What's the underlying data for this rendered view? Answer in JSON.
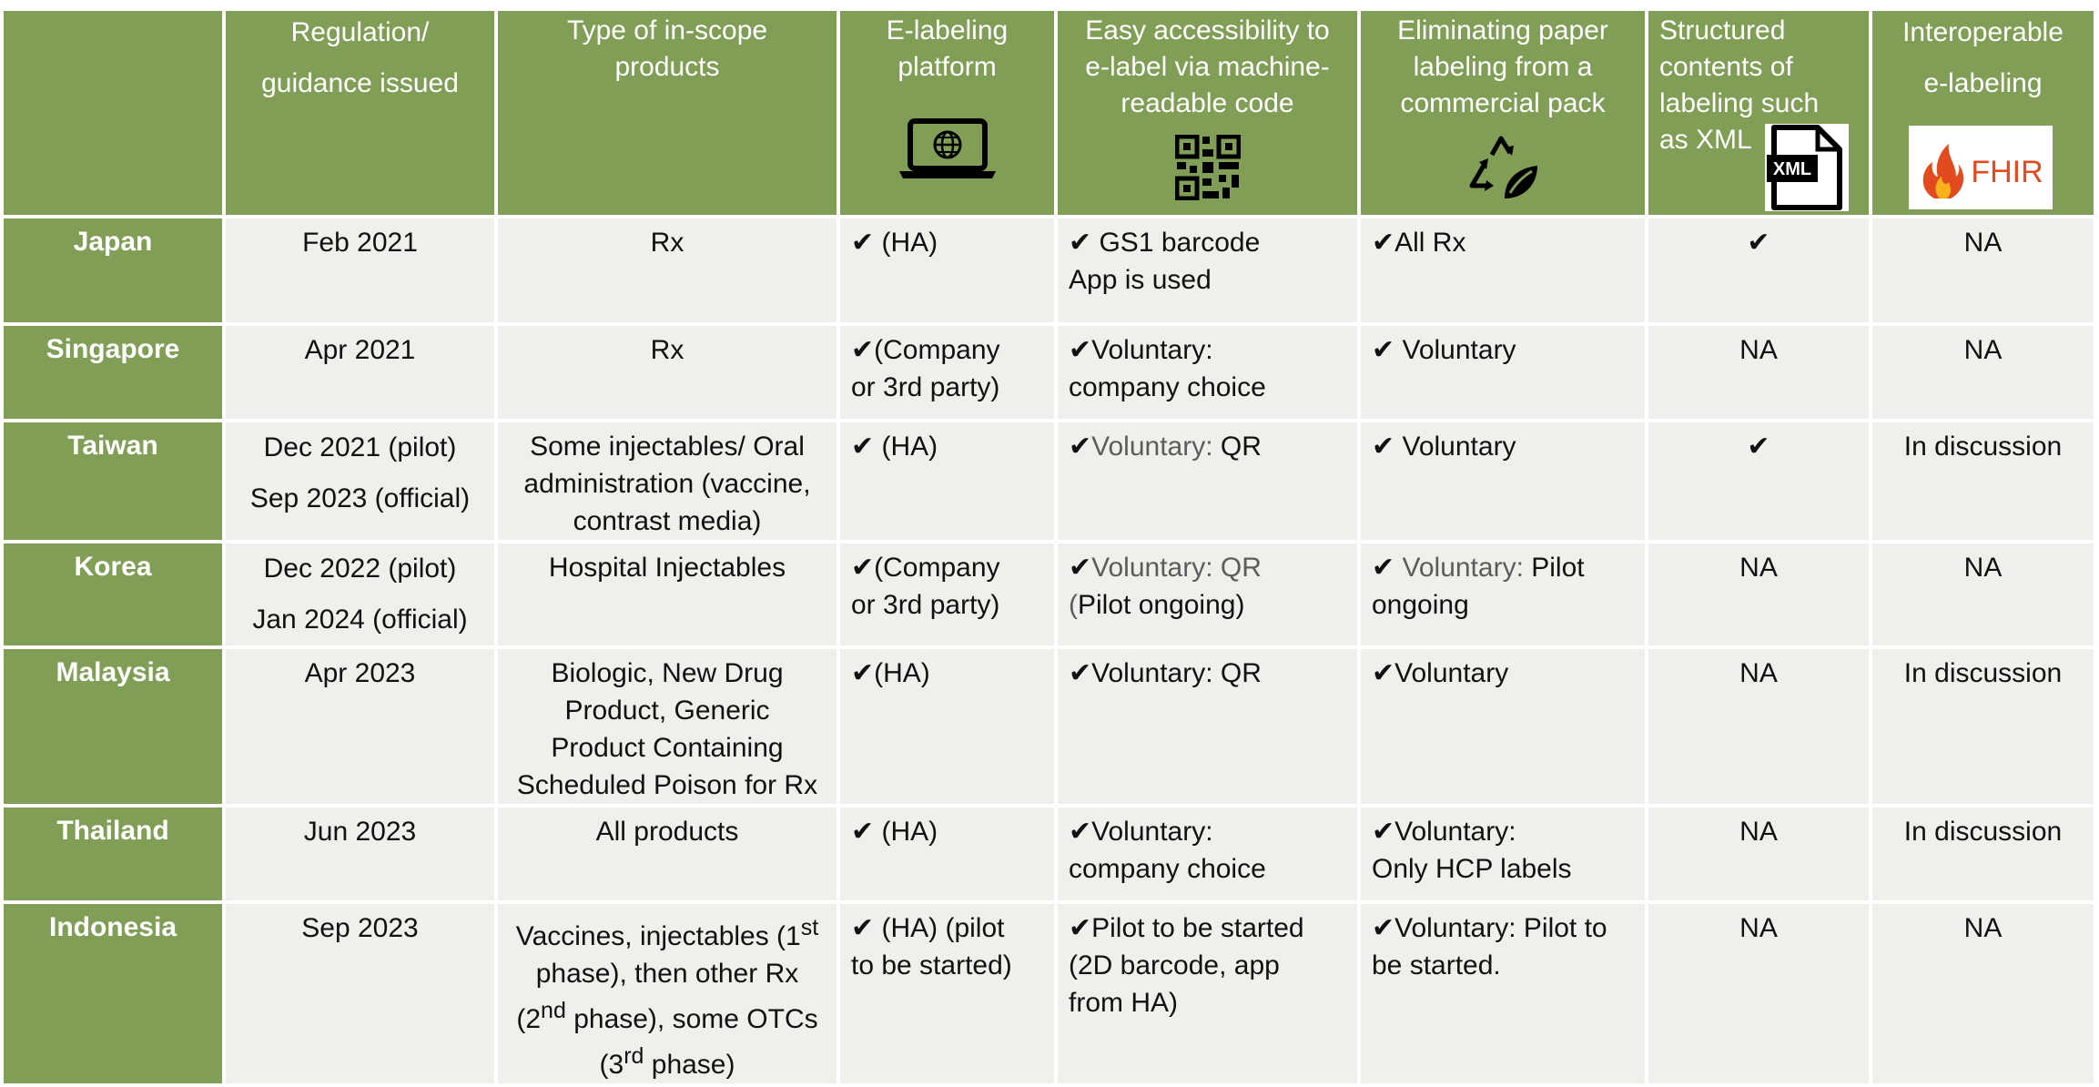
{
  "headers": [
    {
      "key": "country",
      "lines": []
    },
    {
      "key": "regulation",
      "lines": [
        "Regulation/",
        "guidance issued"
      ]
    },
    {
      "key": "products",
      "lines": [
        "Type of in-scope",
        "products"
      ]
    },
    {
      "key": "platform",
      "lines": [
        "E-labeling",
        "platform"
      ],
      "icon": "laptop-globe-icon"
    },
    {
      "key": "accessibility",
      "lines": [
        "Easy accessibility to",
        "e-label via machine-",
        "readable code"
      ],
      "icon": "qr-code-icon"
    },
    {
      "key": "paper",
      "lines": [
        "Eliminating paper",
        "labeling from a",
        "commercial pack"
      ],
      "icon": "recycle-leaf-icon"
    },
    {
      "key": "structured",
      "lines": [
        "Structured",
        "contents of",
        "labeling such",
        "as XML"
      ],
      "icon": "xml-file-icon"
    },
    {
      "key": "interop",
      "lines": [
        "Interoperable",
        "e-labeling"
      ],
      "icon": "fhir-logo-icon"
    }
  ],
  "xml_badge_text": "XML",
  "fhir_logo_text": "FHIR",
  "rows": [
    {
      "country": "Japan",
      "regulation": [
        "Feb 2021"
      ],
      "products": [
        "Rx"
      ],
      "platform": [
        "✔ (HA)"
      ],
      "accessibility": [
        "✔ GS1 barcode",
        "App is used"
      ],
      "paper": [
        "✔All Rx"
      ],
      "structured": [
        "✔"
      ],
      "interop": [
        "NA"
      ]
    },
    {
      "country": "Singapore",
      "regulation": [
        "Apr 2021"
      ],
      "products": [
        "Rx"
      ],
      "platform": [
        "✔(Company",
        "or 3rd party)"
      ],
      "accessibility": [
        "✔Voluntary:",
        "company choice"
      ],
      "paper": [
        "✔ Voluntary"
      ],
      "structured": [
        "NA"
      ],
      "interop": [
        "NA"
      ]
    },
    {
      "country": "Taiwan",
      "regulation": [
        "Dec 2021 (pilot)",
        "Sep 2023 (official)"
      ],
      "products": [
        "Some injectables/ Oral",
        "administration (vaccine,",
        "contrast media)"
      ],
      "platform": [
        "✔ (HA)"
      ],
      "accessibility_check": "✔",
      "accessibility_gray": "Voluntary:",
      "accessibility_rest": " QR",
      "paper": [
        "✔ Voluntary"
      ],
      "structured": [
        "✔"
      ],
      "interop": [
        "In discussion"
      ]
    },
    {
      "country": "Korea",
      "regulation": [
        "Dec 2022 (pilot)",
        "Jan 2024 (official)"
      ],
      "products": [
        "Hospital Injectables"
      ],
      "platform": [
        "✔(Company",
        "or 3rd party)"
      ],
      "accessibility_check": "✔",
      "accessibility_gray": "Voluntary: QR",
      "accessibility_line2_gray": "(",
      "accessibility_line2_rest": "Pilot ongoing)",
      "paper_check": "✔ ",
      "paper_gray": "Voluntary:",
      "paper_rest": " Pilot",
      "paper_line2": "ongoing",
      "structured": [
        "NA"
      ],
      "interop": [
        "NA"
      ]
    },
    {
      "country": "Malaysia",
      "regulation": [
        "Apr 2023"
      ],
      "products": [
        "Biologic, New Drug",
        "Product, Generic",
        "Product Containing",
        "Scheduled Poison for Rx"
      ],
      "platform": [
        "✔(HA)"
      ],
      "accessibility": [
        "✔Voluntary: QR"
      ],
      "paper": [
        "✔Voluntary"
      ],
      "structured": [
        "NA"
      ],
      "interop": [
        "In discussion"
      ]
    },
    {
      "country": "Thailand",
      "regulation": [
        "Jun 2023"
      ],
      "products": [
        "All products"
      ],
      "platform": [
        "✔ (HA)"
      ],
      "accessibility": [
        "✔Voluntary:",
        "company choice"
      ],
      "paper": [
        "✔Voluntary:",
        "Only HCP labels"
      ],
      "structured": [
        "NA"
      ],
      "interop": [
        "In discussion"
      ]
    },
    {
      "country": "Indonesia",
      "regulation": [
        "Sep 2023"
      ],
      "products_rich": [
        [
          "Vaccines, injectables (1",
          "st",
          ""
        ],
        [
          "phase), then other Rx",
          "",
          ""
        ],
        [
          "(2",
          "nd",
          " phase), some OTCs"
        ],
        [
          "(3",
          "rd",
          " phase)"
        ]
      ],
      "platform": [
        "✔ (HA) (pilot",
        "to be started)"
      ],
      "accessibility": [
        "✔Pilot to be started",
        "(2D barcode, app",
        "from HA)"
      ],
      "paper": [
        "✔Voluntary: Pilot to",
        "be started."
      ],
      "structured": [
        "NA"
      ],
      "interop": [
        "NA"
      ]
    }
  ]
}
